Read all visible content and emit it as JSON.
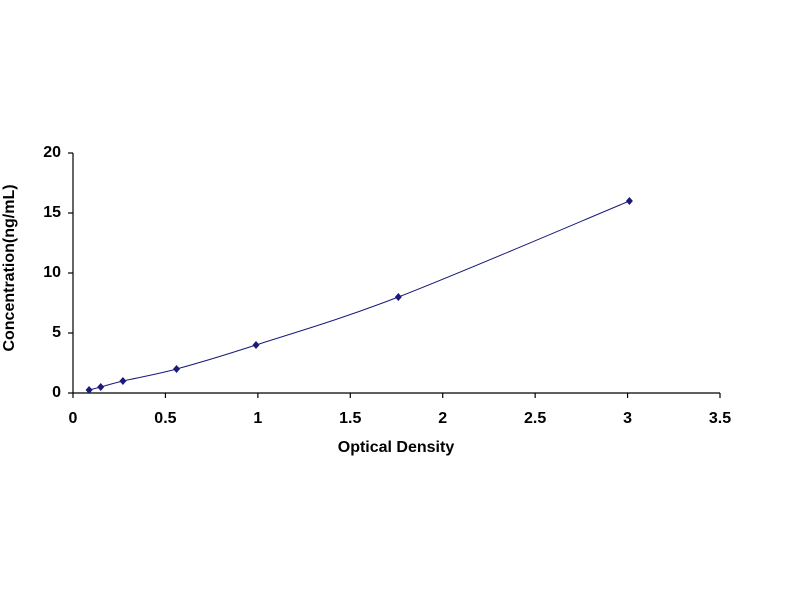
{
  "chart_data": {
    "type": "scatter",
    "x_label": "Optical Density",
    "y_label": "Concentration(ng/mL)",
    "x": [
      0.087,
      0.15,
      0.27,
      0.56,
      0.99,
      1.76,
      3.01
    ],
    "values": [
      0.25,
      0.5,
      1,
      2,
      4,
      8,
      16
    ],
    "color": "#1a1a7a",
    "smooth_line": true,
    "xlim": [
      0,
      3.5
    ],
    "xticks": [
      0,
      0.5,
      1,
      1.5,
      2,
      2.5,
      3,
      3.5
    ],
    "ylim": [
      0,
      20
    ],
    "yticks": [
      0,
      5,
      10,
      15,
      20
    ],
    "grid": false
  }
}
